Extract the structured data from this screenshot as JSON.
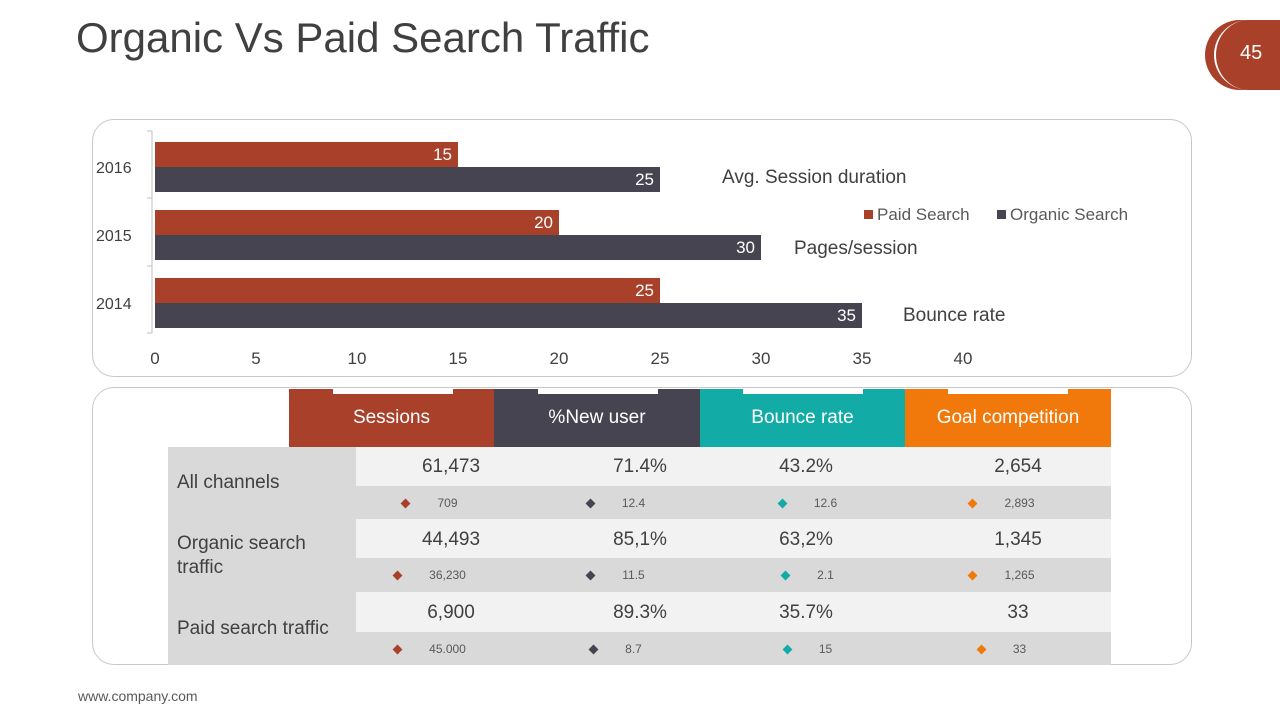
{
  "title": "Organic Vs Paid Search Traffic",
  "page_number": "45",
  "footer": "www.company.com",
  "colors": {
    "paid": "#a8402a",
    "organic": "#464451",
    "teal": "#13aba6",
    "orange": "#f1780b",
    "accent": "#a8402a"
  },
  "chart_data": {
    "type": "bar",
    "orientation": "horizontal",
    "categories": [
      "2016",
      "2015",
      "2014"
    ],
    "series": [
      {
        "name": "Paid Search",
        "values": [
          15,
          20,
          25
        ]
      },
      {
        "name": "Organic Search",
        "values": [
          25,
          30,
          35
        ]
      }
    ],
    "xlim": [
      0,
      40
    ],
    "xticks": [
      "0",
      "5",
      "10",
      "15",
      "20",
      "25",
      "30",
      "35",
      "40"
    ],
    "annotations": [
      "Avg. Session duration",
      "Pages/session",
      "Bounce rate"
    ],
    "legend": [
      "Paid Search",
      "Organic Search"
    ],
    "legend_position": "right"
  },
  "table": {
    "headers": [
      "Sessions",
      "%New user",
      "Bounce rate",
      "Goal competition"
    ],
    "rows": [
      {
        "label": "All channels",
        "values": [
          "61,473",
          "71.4%",
          "43.2%",
          "2,654"
        ],
        "sub": [
          "709",
          "12.4",
          "12.6",
          "2,893"
        ]
      },
      {
        "label": "Organic search traffic",
        "values": [
          "44,493",
          "85,1%",
          "63,2%",
          "1,345"
        ],
        "sub": [
          "36,230",
          "11.5",
          "2.1",
          "1,265"
        ]
      },
      {
        "label": "Paid search traffic",
        "values": [
          "6,900",
          "89.3%",
          "35.7%",
          "33"
        ],
        "sub": [
          "45.000",
          "8.7",
          "15",
          "33"
        ]
      }
    ]
  }
}
